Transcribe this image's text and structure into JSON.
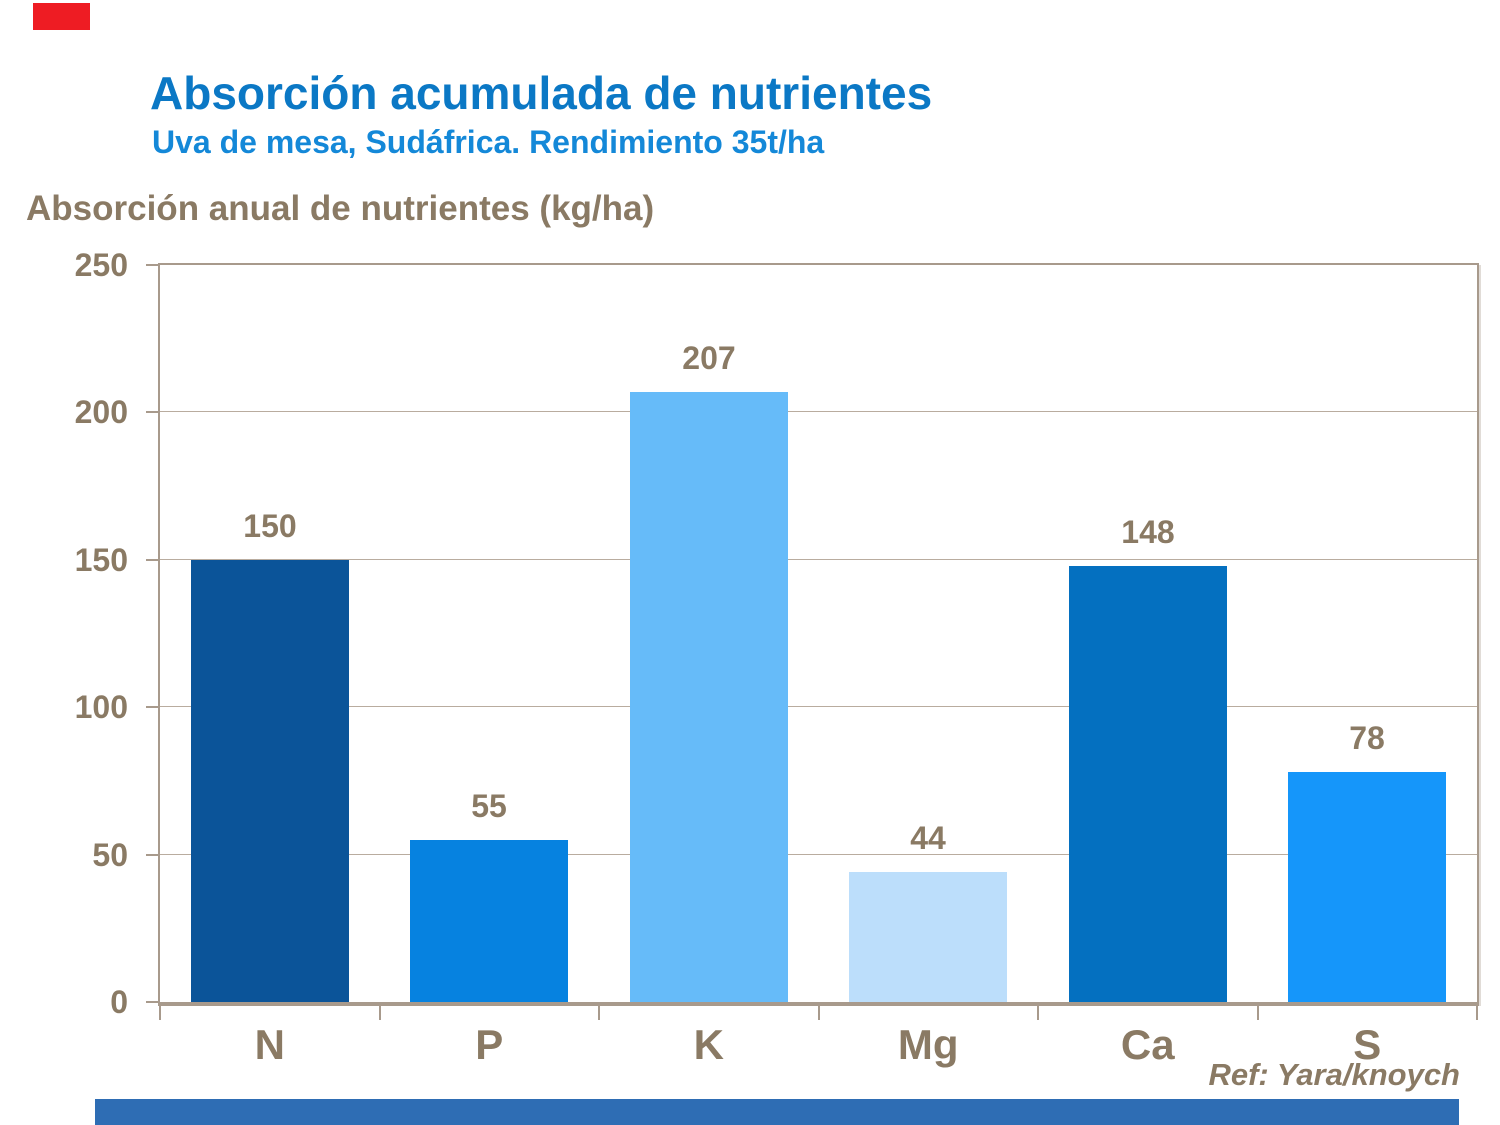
{
  "header": {
    "title": "Absorción acumulada de nutrientes",
    "subtitle": "Uva de mesa, Sudáfrica. Rendimiento 35t/ha"
  },
  "axis_header": "Absorción anual de nutrientes (kg/ha)",
  "footer": {
    "reference": "Ref: Yara/knoych"
  },
  "colors": {
    "title_blue": "#0b78c5",
    "subtitle_blue": "#1488d8",
    "text_brown": "#8a7a64",
    "plot_border_tan": "#a89a8c",
    "gridline_tan": "#b9ac9f",
    "red_accent": "#ee1c23",
    "bottom_bar_blue": "#2e6db4"
  },
  "chart_data": {
    "type": "bar",
    "title": "Absorción acumulada de nutrientes",
    "subtitle": "Uva de mesa, Sudáfrica. Rendimiento 35t/ha",
    "ylabel": "Absorción anual de nutrientes (kg/ha)",
    "xlabel": "",
    "categories": [
      "N",
      "P",
      "K",
      "Mg",
      "Ca",
      "S"
    ],
    "values": [
      150,
      55,
      207,
      44,
      148,
      78
    ],
    "bar_colors": [
      "#0b5499",
      "#0682e0",
      "#66bbf9",
      "#bcdefb",
      "#0470c0",
      "#1596fa"
    ],
    "value_labels": [
      "150",
      "55",
      "207",
      "44",
      "148",
      "78"
    ],
    "ylim": [
      0,
      250
    ],
    "yticks": [
      0,
      50,
      100,
      150,
      200,
      250
    ],
    "grid": true,
    "legend": false,
    "reference": "Ref: Yara/knoych"
  }
}
